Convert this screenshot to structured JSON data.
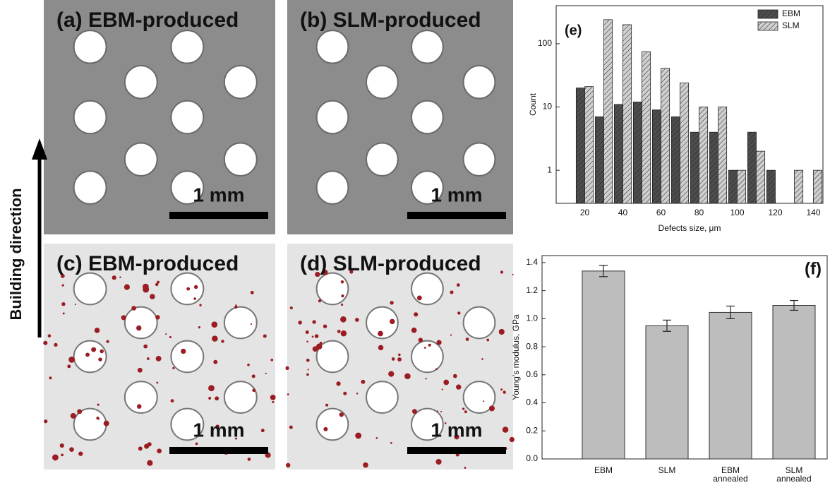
{
  "building_direction": "Building direction",
  "panels": [
    {
      "label": "(a) EBM-produced",
      "scale": "1 mm"
    },
    {
      "label": "(b) SLM-produced",
      "scale": "1 mm"
    },
    {
      "label": "(c) EBM-produced",
      "scale": "1 mm"
    },
    {
      "label": "(d) SLM-produced",
      "scale": "1 mm"
    }
  ],
  "chart_data": [
    {
      "type": "bar",
      "annotation": "(e)",
      "x_label": "Defects size, μm",
      "y_label": "Count",
      "x": [
        20,
        30,
        40,
        50,
        60,
        70,
        80,
        90,
        100,
        110,
        120,
        130,
        140
      ],
      "series": [
        {
          "name": "EBM",
          "color": "#4d4d4d",
          "values": [
            20,
            7,
            11,
            12,
            9,
            7,
            4,
            4,
            1,
            4,
            1,
            null,
            null
          ]
        },
        {
          "name": "SLM",
          "color": "#cfcfcf",
          "values": [
            21,
            240,
            200,
            75,
            41,
            24,
            10,
            10,
            1,
            2,
            null,
            1,
            1
          ]
        }
      ],
      "xlim": [
        5,
        145
      ],
      "xticks": [
        20,
        40,
        60,
        80,
        100,
        120,
        140
      ],
      "ylim": [
        0.3,
        400
      ],
      "yticks": [
        1,
        10,
        100
      ],
      "log_scale": true,
      "legend": "upper right"
    },
    {
      "type": "bar",
      "annotation": "(f)",
      "y_label": "Young's modulus, GPa",
      "categories": [
        "EBM",
        "SLM",
        "EBM annealed",
        "SLM annealed"
      ],
      "values": [
        1.34,
        0.95,
        1.045,
        1.095
      ],
      "errors": [
        0.04,
        0.04,
        0.045,
        0.035
      ],
      "color": "#bdbdbd",
      "ylim": [
        0,
        1.45
      ],
      "yticks": [
        {
          "value": 0,
          "label": "0.0"
        },
        0.2,
        0.4,
        0.6,
        0.8,
        {
          "value": 1,
          "label": "1.0"
        },
        1.2,
        1.4
      ]
    }
  ]
}
